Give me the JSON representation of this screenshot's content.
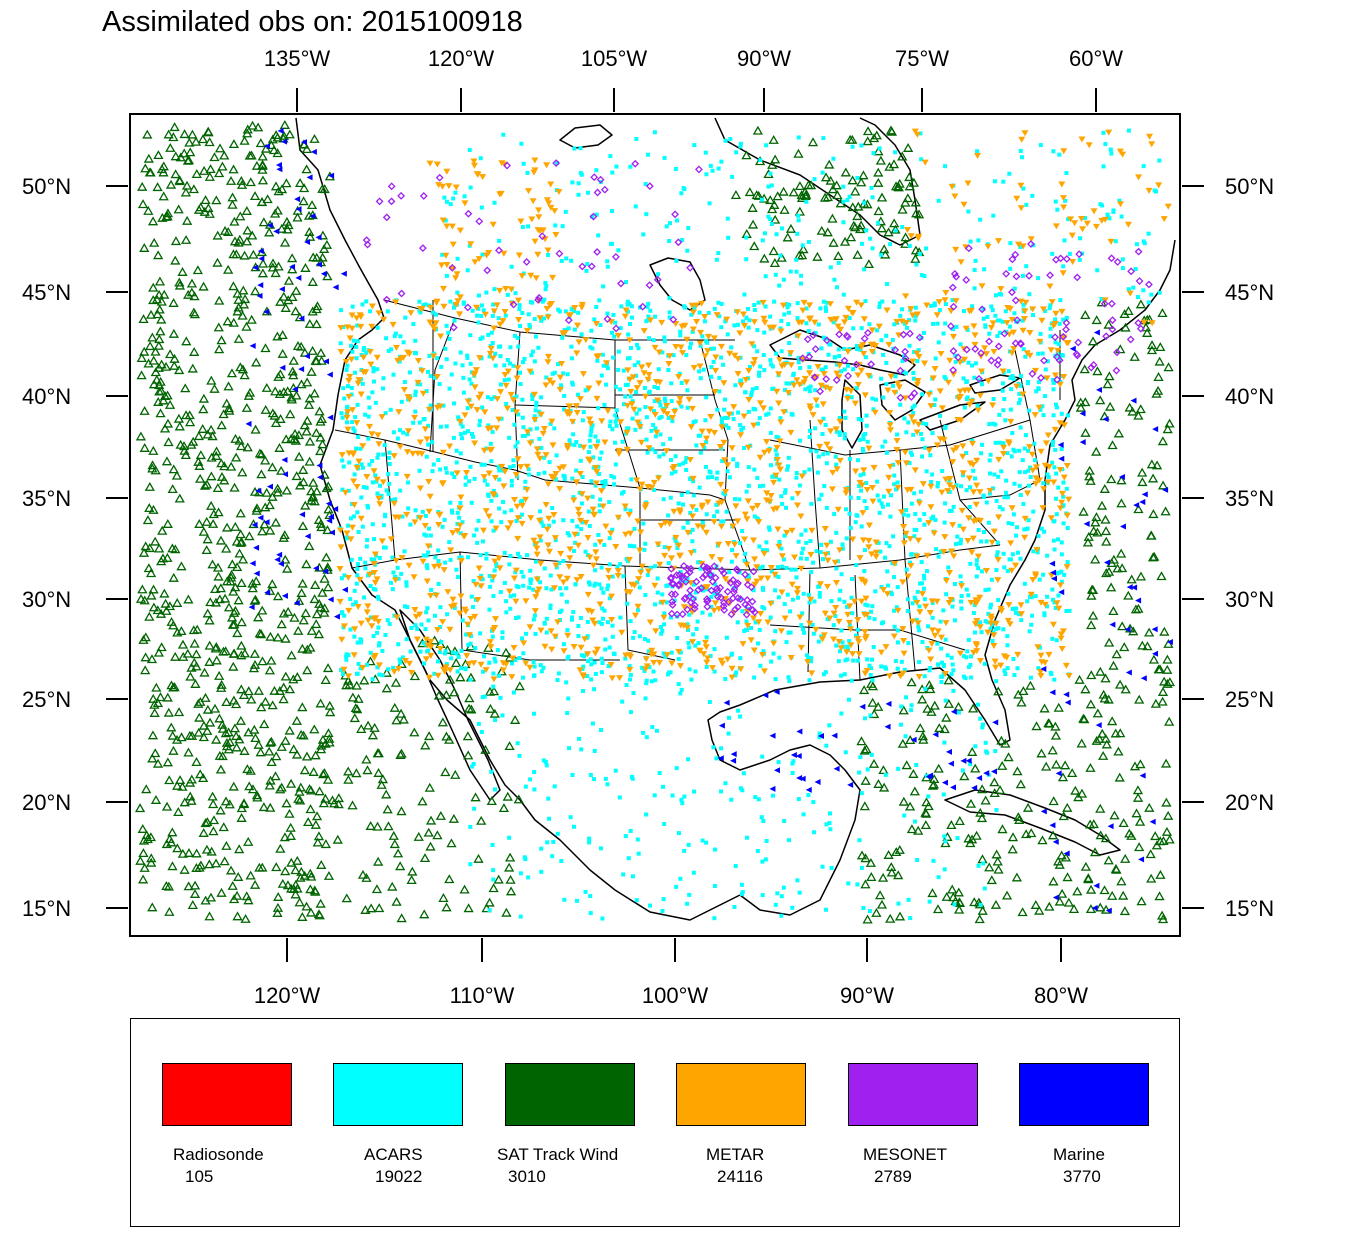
{
  "title": "Assimilated obs on: 2015100918",
  "map": {
    "top_lon_labels": [
      "135°W",
      "120°W",
      "105°W",
      "90°W",
      "75°W",
      "60°W"
    ],
    "bottom_lon_labels": [
      "120°W",
      "110°W",
      "100°W",
      "90°W",
      "80°W"
    ],
    "lat_labels": [
      "50°N",
      "45°N",
      "40°N",
      "35°N",
      "30°N",
      "25°N",
      "20°N",
      "15°N"
    ],
    "land_color": "#ffffff",
    "boundary_color": "#000000"
  },
  "obs_types": [
    {
      "name": "Radiosonde",
      "count": "105",
      "color": "#ff0000",
      "marker": "circle"
    },
    {
      "name": "ACARS",
      "count": "19022",
      "color": "#00ffff",
      "marker": "dot"
    },
    {
      "name": "SAT Track Wind",
      "count": "3010",
      "color": "#006400",
      "marker": "triangle-up"
    },
    {
      "name": "METAR",
      "count": "24116",
      "color": "#ffa500",
      "marker": "triangle-down"
    },
    {
      "name": "MESONET",
      "count": "2789",
      "color": "#a020f0",
      "marker": "diamond"
    },
    {
      "name": "Marine",
      "count": "3770",
      "color": "#0000ff",
      "marker": "triangle-left"
    }
  ]
}
